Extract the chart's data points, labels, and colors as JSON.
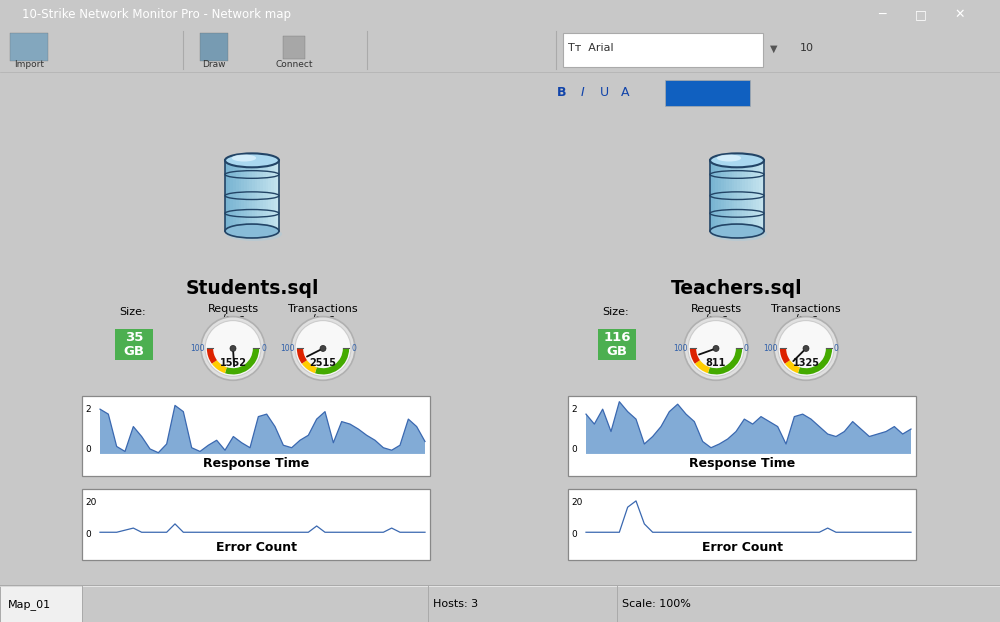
{
  "title_bar": "10-Strike Network Monitor Pro - Network map",
  "databases": [
    {
      "name": "Students.sql",
      "size_gb": "35",
      "requests_val": 1552,
      "transactions_val": 2515
    },
    {
      "name": "Teachers.sql",
      "size_gb": "116",
      "requests_val": 811,
      "transactions_val": 1325
    }
  ],
  "response_time_1": [
    1.8,
    1.6,
    0.3,
    0.1,
    1.1,
    0.7,
    0.2,
    0.05,
    0.4,
    1.95,
    1.7,
    0.25,
    0.1,
    0.35,
    0.55,
    0.15,
    0.7,
    0.45,
    0.25,
    1.5,
    1.6,
    1.1,
    0.35,
    0.25,
    0.55,
    0.75,
    1.4,
    1.7,
    0.45,
    1.3,
    1.2,
    1.0,
    0.75,
    0.55,
    0.25,
    0.15,
    0.35,
    1.4,
    1.1,
    0.5
  ],
  "response_time_2": [
    1.6,
    1.2,
    1.8,
    0.9,
    2.1,
    1.7,
    1.4,
    0.4,
    0.7,
    1.1,
    1.7,
    2.0,
    1.6,
    1.3,
    0.5,
    0.25,
    0.4,
    0.6,
    0.9,
    1.4,
    1.2,
    1.5,
    1.3,
    1.1,
    0.4,
    1.5,
    1.6,
    1.4,
    1.1,
    0.8,
    0.7,
    0.9,
    1.3,
    1.0,
    0.7,
    0.8,
    0.9,
    1.1,
    0.8,
    1.0
  ],
  "error_count_1": [
    3,
    3,
    3,
    4,
    5,
    3,
    3,
    3,
    3,
    7,
    3,
    3,
    3,
    3,
    3,
    3,
    3,
    3,
    3,
    3,
    3,
    3,
    3,
    3,
    3,
    3,
    6,
    3,
    3,
    3,
    3,
    3,
    3,
    3,
    3,
    5,
    3,
    3,
    3,
    3
  ],
  "error_count_2": [
    3,
    3,
    3,
    3,
    3,
    15,
    18,
    7,
    3,
    3,
    3,
    3,
    3,
    3,
    3,
    3,
    3,
    3,
    3,
    3,
    3,
    3,
    3,
    3,
    3,
    3,
    3,
    3,
    3,
    5,
    3,
    3,
    3,
    3,
    3,
    3,
    3,
    3,
    3,
    3
  ],
  "size_color": "#4caf50",
  "chart_line_color": "#3a68b0",
  "chart_fill_color": "#7ba7d4",
  "gauge_green": "#44aa00",
  "gauge_yellow": "#ffcc00",
  "gauge_red": "#dd2200",
  "title_bg": "#1450a0",
  "toolbar_bg": "#f0f0f0",
  "canvas_bg": "#ffffff",
  "grid_color": "#c8c8c8",
  "statusbar_bg": "#f0f0f0"
}
